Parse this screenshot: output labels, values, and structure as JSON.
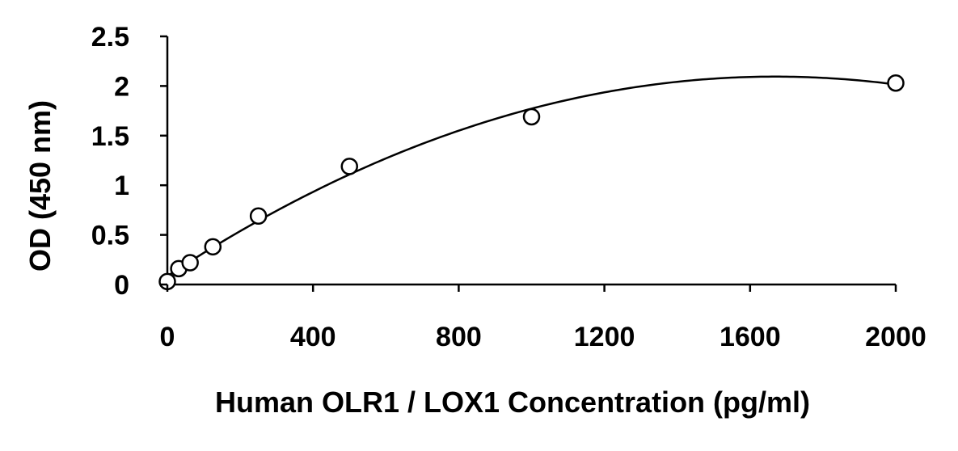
{
  "chart_data": {
    "type": "scatter",
    "xlabel": "Human OLR1 / LOX1 Concentration (pg/ml)",
    "ylabel": "OD (450 nm)",
    "xlim": [
      0,
      2000
    ],
    "ylim": [
      0,
      2.5
    ],
    "x_ticks": [
      0,
      400,
      800,
      1200,
      1600,
      2000
    ],
    "y_ticks": [
      0,
      0.5,
      1,
      1.5,
      2,
      2.5
    ],
    "x_tick_labels": [
      "0",
      "400",
      "800",
      "1200",
      "1600",
      "2000"
    ],
    "y_tick_labels": [
      "0",
      "0.5",
      "1",
      "1.5",
      "2",
      "2.5"
    ],
    "grid": false,
    "legend": "none",
    "series": [
      {
        "x": [
          0,
          31.25,
          62.5,
          125,
          250,
          500,
          1000,
          2000
        ],
        "y": [
          0.03,
          0.16,
          0.22,
          0.38,
          0.69,
          1.19,
          1.69,
          2.03
        ],
        "marker": "open-circle",
        "fit": "polynomial-trendline"
      }
    ],
    "colors": {
      "marker_stroke": "#000000",
      "marker_fill": "#ffffff",
      "line": "#000000"
    }
  }
}
